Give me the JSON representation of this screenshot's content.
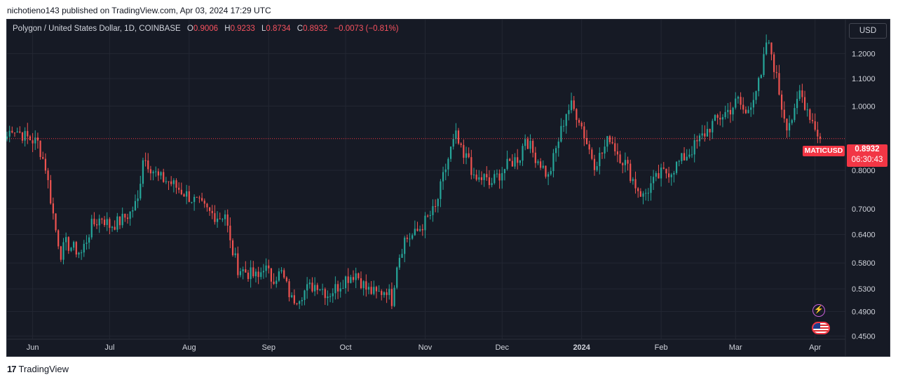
{
  "header": {
    "published": "nichotieno143 published on TradingView.com, Apr 03, 2024 17:29 UTC"
  },
  "legend": {
    "symbol": "Polygon / United States Dollar, 1D, COINBASE",
    "o_label": "O",
    "o_value": "0.9006",
    "h_label": "H",
    "h_value": "0.9233",
    "l_label": "L",
    "l_value": "0.8734",
    "c_label": "C",
    "c_value": "0.8932",
    "change": "−0.0073 (−0.81%)"
  },
  "currency_button": "USD",
  "price_label": {
    "ticker": "MATICUSD",
    "price": "0.8932",
    "countdown": "06:30:43"
  },
  "footer": {
    "brand": "TradingView",
    "logo": "17"
  },
  "icons": {
    "lightning": "lightning-icon",
    "flag": "us-flag-icon",
    "tv_logo": "tradingview-logo-icon"
  },
  "colors": {
    "up": "#26a69a",
    "down": "#ef5350",
    "background": "#161a25",
    "price_line": "#f23645"
  },
  "chart_data": {
    "type": "candlestick",
    "title": "Polygon / United States Dollar, 1D, COINBASE",
    "scale": "log",
    "ylim": [
      0.445,
      1.35
    ],
    "y_ticks": [
      "1.2000",
      "1.1000",
      "1.0000",
      "0.8000",
      "0.7000",
      "0.6400",
      "0.5800",
      "0.5300",
      "0.4900",
      "0.4500"
    ],
    "y_tick_values": [
      1.2,
      1.1,
      1.0,
      0.8,
      0.7,
      0.64,
      0.58,
      0.53,
      0.49,
      0.45
    ],
    "x_ticks": [
      "Jun",
      "Jul",
      "Aug",
      "Sep",
      "Oct",
      "Nov",
      "Dec",
      "2024",
      "Feb",
      "Mar",
      "Apr"
    ],
    "x_tick_dates": [
      "2023-06-01",
      "2023-07-01",
      "2023-08-01",
      "2023-09-01",
      "2023-10-01",
      "2023-11-01",
      "2023-12-01",
      "2024-01-01",
      "2024-02-01",
      "2024-03-01",
      "2024-04-01"
    ],
    "x_range": [
      "2023-05-22",
      "2024-04-03"
    ],
    "current_price": 0.8932,
    "close_path": [
      [
        "2023-05-22",
        0.9
      ],
      [
        "2023-05-24",
        0.93
      ],
      [
        "2023-05-29",
        0.9
      ],
      [
        "2023-06-03",
        0.88
      ],
      [
        "2023-06-06",
        0.81
      ],
      [
        "2023-06-10",
        0.65
      ],
      [
        "2023-06-12",
        0.6
      ],
      [
        "2023-06-14",
        0.62
      ],
      [
        "2023-06-17",
        0.61
      ],
      [
        "2023-06-20",
        0.6
      ],
      [
        "2023-06-24",
        0.66
      ],
      [
        "2023-06-28",
        0.68
      ],
      [
        "2023-07-01",
        0.66
      ],
      [
        "2023-07-05",
        0.67
      ],
      [
        "2023-07-09",
        0.69
      ],
      [
        "2023-07-12",
        0.72
      ],
      [
        "2023-07-14",
        0.84
      ],
      [
        "2023-07-17",
        0.81
      ],
      [
        "2023-07-20",
        0.78
      ],
      [
        "2023-07-24",
        0.77
      ],
      [
        "2023-07-28",
        0.75
      ],
      [
        "2023-08-01",
        0.73
      ],
      [
        "2023-08-05",
        0.71
      ],
      [
        "2023-08-09",
        0.69
      ],
      [
        "2023-08-13",
        0.68
      ],
      [
        "2023-08-15",
        0.69
      ],
      [
        "2023-08-17",
        0.62
      ],
      [
        "2023-08-20",
        0.57
      ],
      [
        "2023-08-24",
        0.56
      ],
      [
        "2023-08-28",
        0.55
      ],
      [
        "2023-08-30",
        0.575
      ],
      [
        "2023-09-02",
        0.55
      ],
      [
        "2023-09-06",
        0.56
      ],
      [
        "2023-09-10",
        0.51
      ],
      [
        "2023-09-12",
        0.515
      ],
      [
        "2023-09-16",
        0.53
      ],
      [
        "2023-09-20",
        0.54
      ],
      [
        "2023-09-24",
        0.52
      ],
      [
        "2023-09-28",
        0.535
      ],
      [
        "2023-10-01",
        0.55
      ],
      [
        "2023-10-05",
        0.56
      ],
      [
        "2023-10-09",
        0.53
      ],
      [
        "2023-10-13",
        0.52
      ],
      [
        "2023-10-17",
        0.53
      ],
      [
        "2023-10-19",
        0.51
      ],
      [
        "2023-10-21",
        0.58
      ],
      [
        "2023-10-24",
        0.63
      ],
      [
        "2023-10-28",
        0.64
      ],
      [
        "2023-11-01",
        0.67
      ],
      [
        "2023-11-05",
        0.7
      ],
      [
        "2023-11-08",
        0.78
      ],
      [
        "2023-11-11",
        0.86
      ],
      [
        "2023-11-13",
        0.9
      ],
      [
        "2023-11-16",
        0.83
      ],
      [
        "2023-11-18",
        0.84
      ],
      [
        "2023-11-20",
        0.77
      ],
      [
        "2023-11-24",
        0.78
      ],
      [
        "2023-11-26",
        0.76
      ],
      [
        "2023-11-30",
        0.79
      ],
      [
        "2023-12-04",
        0.82
      ],
      [
        "2023-12-08",
        0.84
      ],
      [
        "2023-12-10",
        0.9
      ],
      [
        "2023-12-13",
        0.85
      ],
      [
        "2023-12-16",
        0.82
      ],
      [
        "2023-12-19",
        0.78
      ],
      [
        "2023-12-22",
        0.86
      ],
      [
        "2023-12-26",
        0.98
      ],
      [
        "2023-12-28",
        1.0
      ],
      [
        "2023-12-31",
        0.96
      ],
      [
        "2024-01-03",
        0.88
      ],
      [
        "2024-01-06",
        0.82
      ],
      [
        "2024-01-09",
        0.85
      ],
      [
        "2024-01-12",
        0.9
      ],
      [
        "2024-01-15",
        0.85
      ],
      [
        "2024-01-18",
        0.82
      ],
      [
        "2024-01-22",
        0.76
      ],
      [
        "2024-01-25",
        0.73
      ],
      [
        "2024-01-28",
        0.76
      ],
      [
        "2024-02-01",
        0.79
      ],
      [
        "2024-02-05",
        0.8
      ],
      [
        "2024-02-09",
        0.83
      ],
      [
        "2024-02-13",
        0.86
      ],
      [
        "2024-02-17",
        0.9
      ],
      [
        "2024-02-21",
        0.94
      ],
      [
        "2024-02-25",
        0.97
      ],
      [
        "2024-02-28",
        0.99
      ],
      [
        "2024-03-02",
        1.02
      ],
      [
        "2024-03-05",
        0.97
      ],
      [
        "2024-03-08",
        1.04
      ],
      [
        "2024-03-11",
        1.1
      ],
      [
        "2024-03-13",
        1.25
      ],
      [
        "2024-03-15",
        1.2
      ],
      [
        "2024-03-17",
        1.1
      ],
      [
        "2024-03-19",
        1.0
      ],
      [
        "2024-03-21",
        0.94
      ],
      [
        "2024-03-24",
        0.97
      ],
      [
        "2024-03-26",
        1.05
      ],
      [
        "2024-03-29",
        0.99
      ],
      [
        "2024-04-01",
        0.93
      ],
      [
        "2024-04-03",
        0.8932
      ]
    ]
  }
}
